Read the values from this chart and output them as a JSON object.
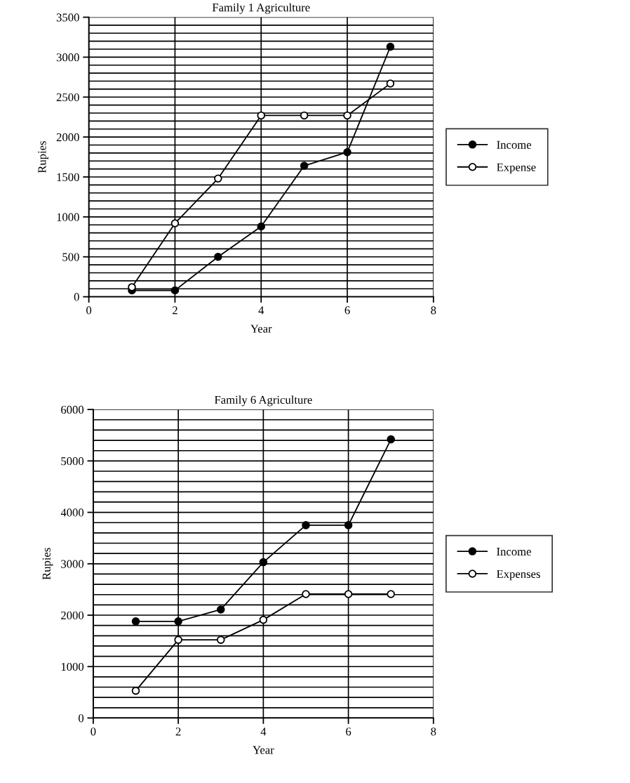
{
  "chart_data": [
    {
      "type": "line",
      "title": "Family 1 Agriculture",
      "xlabel": "Year",
      "ylabel": "Rupies",
      "x": [
        1,
        2,
        3,
        4,
        5,
        6,
        7
      ],
      "series": [
        {
          "name": "Income",
          "color": "#000000",
          "marker": "circle",
          "values": [
            80,
            80,
            500,
            880,
            1640,
            1810,
            3130
          ]
        },
        {
          "name": "Expense",
          "color": "#000000",
          "marker": "open circle",
          "values": [
            120,
            920,
            1480,
            2270,
            2270,
            2270,
            2670
          ]
        }
      ],
      "xlim": [
        0,
        8
      ],
      "xticks": [
        0,
        2,
        4,
        6,
        8
      ],
      "ylim": [
        0,
        3500
      ],
      "yticks": [
        0,
        500,
        1000,
        1500,
        2000,
        2500,
        3000,
        3500
      ],
      "grid": true,
      "legend": "right"
    },
    {
      "type": "line",
      "title": "Family 6 Agriculture",
      "xlabel": "Year",
      "ylabel": "Rupies",
      "x": [
        1,
        2,
        3,
        4,
        5,
        6,
        7
      ],
      "series": [
        {
          "name": "Income",
          "color": "#000000",
          "marker": "circle",
          "values": [
            1880,
            1880,
            2110,
            3030,
            3750,
            3750,
            5420
          ]
        },
        {
          "name": "Expenses",
          "color": "#000000",
          "marker": "open circle",
          "values": [
            530,
            1520,
            1520,
            1910,
            2410,
            2410,
            2410
          ]
        }
      ],
      "xlim": [
        0,
        8
      ],
      "xticks": [
        0,
        2,
        4,
        6,
        8
      ],
      "ylim": [
        0,
        6000
      ],
      "yticks": [
        0,
        1000,
        2000,
        3000,
        4000,
        5000,
        6000
      ],
      "grid": true,
      "legend": "right"
    }
  ]
}
